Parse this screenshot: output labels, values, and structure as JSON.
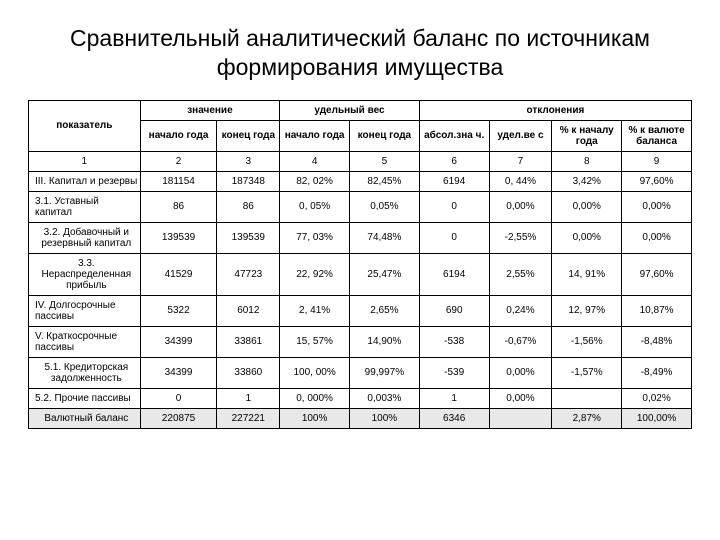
{
  "title": "Сравнительный аналитический баланс по источникам формирования имущества",
  "table": {
    "header": {
      "group1": "значение",
      "group2": "удельный вес",
      "group3": "отклонения",
      "indicator": "показатель",
      "begin_year": "начало года",
      "end_year": "конец года",
      "begin_year2": "начало года",
      "end_year2": "конец года",
      "abs": "абсол.зна ч.",
      "rel": "удел.ве с",
      "pct_begin": "% к началу года",
      "pct_currency": "% к валюте баланса"
    },
    "numrow": [
      "1",
      "2",
      "3",
      "4",
      "5",
      "6",
      "7",
      "8",
      "9"
    ],
    "rows": [
      {
        "label": "III. Капитал и резервы",
        "c": [
          "181154",
          "187348",
          "82, 02%",
          "82,45%",
          "6194",
          "0, 44%",
          "3,42%",
          "97,60%"
        ],
        "center": false
      },
      {
        "label": "3.1. Уставный капитал",
        "c": [
          "86",
          "86",
          "0, 05%",
          "0,05%",
          "0",
          "0,00%",
          "0,00%",
          "0,00%"
        ],
        "center": false
      },
      {
        "label": "3.2. Добавочный и резервный капитал",
        "c": [
          "139539",
          "139539",
          "77, 03%",
          "74,48%",
          "0",
          "-2,55%",
          "0,00%",
          "0,00%"
        ],
        "center": true
      },
      {
        "label": "3.3. Нераспределенная прибыль",
        "c": [
          "41529",
          "47723",
          "22, 92%",
          "25,47%",
          "6194",
          "2,55%",
          "14, 91%",
          "97,60%"
        ],
        "center": true
      },
      {
        "label": "IV. Долгосрочные пассивы",
        "c": [
          "5322",
          "6012",
          "2, 41%",
          "2,65%",
          "690",
          "0,24%",
          "12, 97%",
          "10,87%"
        ],
        "center": false
      },
      {
        "label": "V. Краткосрочные пассивы",
        "c": [
          "34399",
          "33861",
          "15, 57%",
          "14,90%",
          "-538",
          "-0,67%",
          "-1,56%",
          "-8,48%"
        ],
        "center": false
      },
      {
        "label": "5.1. Кредиторская задолженность",
        "c": [
          "34399",
          "33860",
          "100, 00%",
          "99,997%",
          "-539",
          "0,00%",
          "-1,57%",
          "-8,49%"
        ],
        "center": true
      },
      {
        "label": "5.2. Прочие пассивы",
        "c": [
          "0",
          "1",
          "0, 000%",
          "0,003%",
          "1",
          "0,00%",
          "",
          "0,02%"
        ],
        "center": false
      },
      {
        "label": "Валютный баланс",
        "c": [
          "220875",
          "227221",
          "100%",
          "100%",
          "6346",
          "",
          "2,87%",
          "100,00%"
        ],
        "center": true,
        "shaded": true
      }
    ]
  },
  "styling": {
    "background_color": "#ffffff",
    "text_color": "#000000",
    "border_color": "#000000",
    "shaded_row_color": "#e8e8e8",
    "title_fontsize": 23,
    "cell_fontsize": 10,
    "font_family": "Arial"
  }
}
